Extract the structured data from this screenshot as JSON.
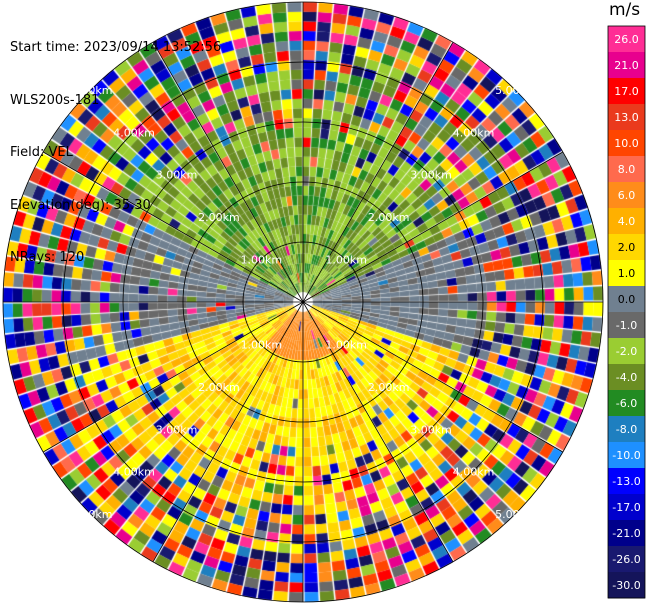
{
  "header": {
    "start_time": "Start time: 2023/09/14 13:52:56",
    "instrument": "WLS200s-181",
    "field": "Field: VEL",
    "elevation": "Elevation(deg): 35.30",
    "nrays": "NRays: 120"
  },
  "chart_data": {
    "type": "heatmap",
    "projection": "polar-ppi",
    "nrays": 120,
    "range_rings_km": [
      "1.00km",
      "2.00km",
      "3.00km",
      "4.00km",
      "5.00km"
    ],
    "colorbar": {
      "unit": "m/s",
      "ticks": [
        "26.0",
        "21.0",
        "17.0",
        "13.0",
        "10.0",
        "8.0",
        "6.0",
        "4.0",
        "2.0",
        "1.0",
        "0.0",
        "-1.0",
        "-2.0",
        "-4.0",
        "-6.0",
        "-8.0",
        "-10.0",
        "-13.0",
        "-17.0",
        "-21.0",
        "-26.0",
        "-30.0"
      ],
      "colors": [
        "#ff2d95",
        "#e8008e",
        "#ff0000",
        "#ea3a1d",
        "#ff4500",
        "#ff6a4d",
        "#ff8c1a",
        "#ffb000",
        "#ffd700",
        "#ffff00",
        "#708090",
        "#696969",
        "#9acd32",
        "#6b8e23",
        "#228b22",
        "#1e7fc0",
        "#1e90ff",
        "#0000ff",
        "#0000cd",
        "#00008b",
        "#191970",
        "#14145a"
      ]
    },
    "near_range_pattern": {
      "north": "green (-1 to -6 m/s)",
      "south": "yellow/orange (2 to 6 m/s)",
      "east_west": "grey (~0 m/s)"
    },
    "far_range_pattern": "noisy, all colors"
  }
}
